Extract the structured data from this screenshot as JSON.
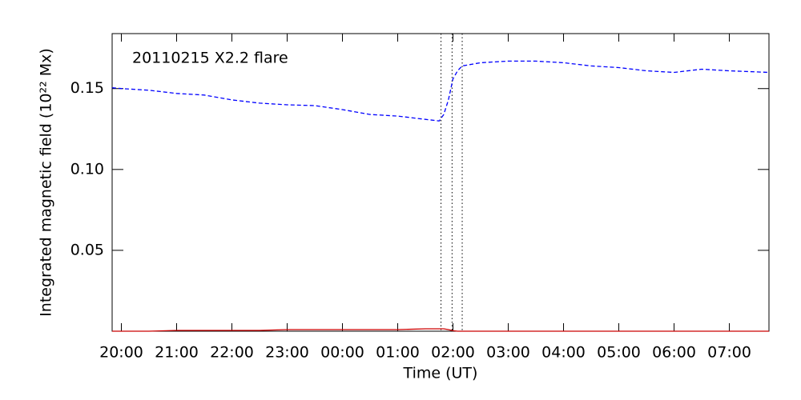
{
  "chart_data": {
    "type": "line",
    "annotation": "20110215 X2.2 flare",
    "xlabel": "Time (UT)",
    "ylabel": "Integrated magnetic field (10²² Mx)",
    "x": [
      "19:50",
      "20:00",
      "20:30",
      "21:00",
      "21:30",
      "22:00",
      "22:30",
      "23:00",
      "23:30",
      "00:00",
      "00:30",
      "01:00",
      "01:30",
      "01:45",
      "01:50",
      "01:55",
      "02:00",
      "02:05",
      "02:10",
      "02:30",
      "03:00",
      "03:30",
      "04:00",
      "04:30",
      "05:00",
      "05:30",
      "06:00",
      "06:30",
      "07:00",
      "07:43"
    ],
    "series": [
      {
        "color": "#0000ff",
        "dashed": true,
        "values": [
          0.1505,
          0.15,
          0.149,
          0.147,
          0.146,
          0.143,
          0.141,
          0.14,
          0.1395,
          0.137,
          0.134,
          0.133,
          0.131,
          0.13,
          0.134,
          0.143,
          0.156,
          0.161,
          0.164,
          0.166,
          0.167,
          0.167,
          0.166,
          0.164,
          0.163,
          0.161,
          0.16,
          0.162,
          0.161,
          0.16
        ]
      },
      {
        "color": "#cc0000",
        "dashed": false,
        "values": [
          0,
          0,
          0,
          0.0005,
          0.0005,
          0.0005,
          0.0005,
          0.001,
          0.001,
          0.001,
          0.001,
          0.001,
          0.0015,
          0.0015,
          0.0015,
          0.001,
          0.0003,
          0,
          0,
          0,
          0,
          0,
          0,
          0,
          0,
          0,
          0,
          0,
          0,
          0
        ]
      }
    ],
    "vlines": [
      "01:47",
      "01:59",
      "02:10"
    ],
    "xlim": [
      "19:50",
      "07:43"
    ],
    "xticks": [
      "20:00",
      "21:00",
      "22:00",
      "23:00",
      "00:00",
      "01:00",
      "02:00",
      "03:00",
      "04:00",
      "05:00",
      "06:00",
      "07:00"
    ],
    "ylim": [
      0,
      0.184
    ],
    "yticks": [
      0.05,
      {
        "value": 0.1,
        "label": "0.10"
      },
      0.15
    ]
  }
}
